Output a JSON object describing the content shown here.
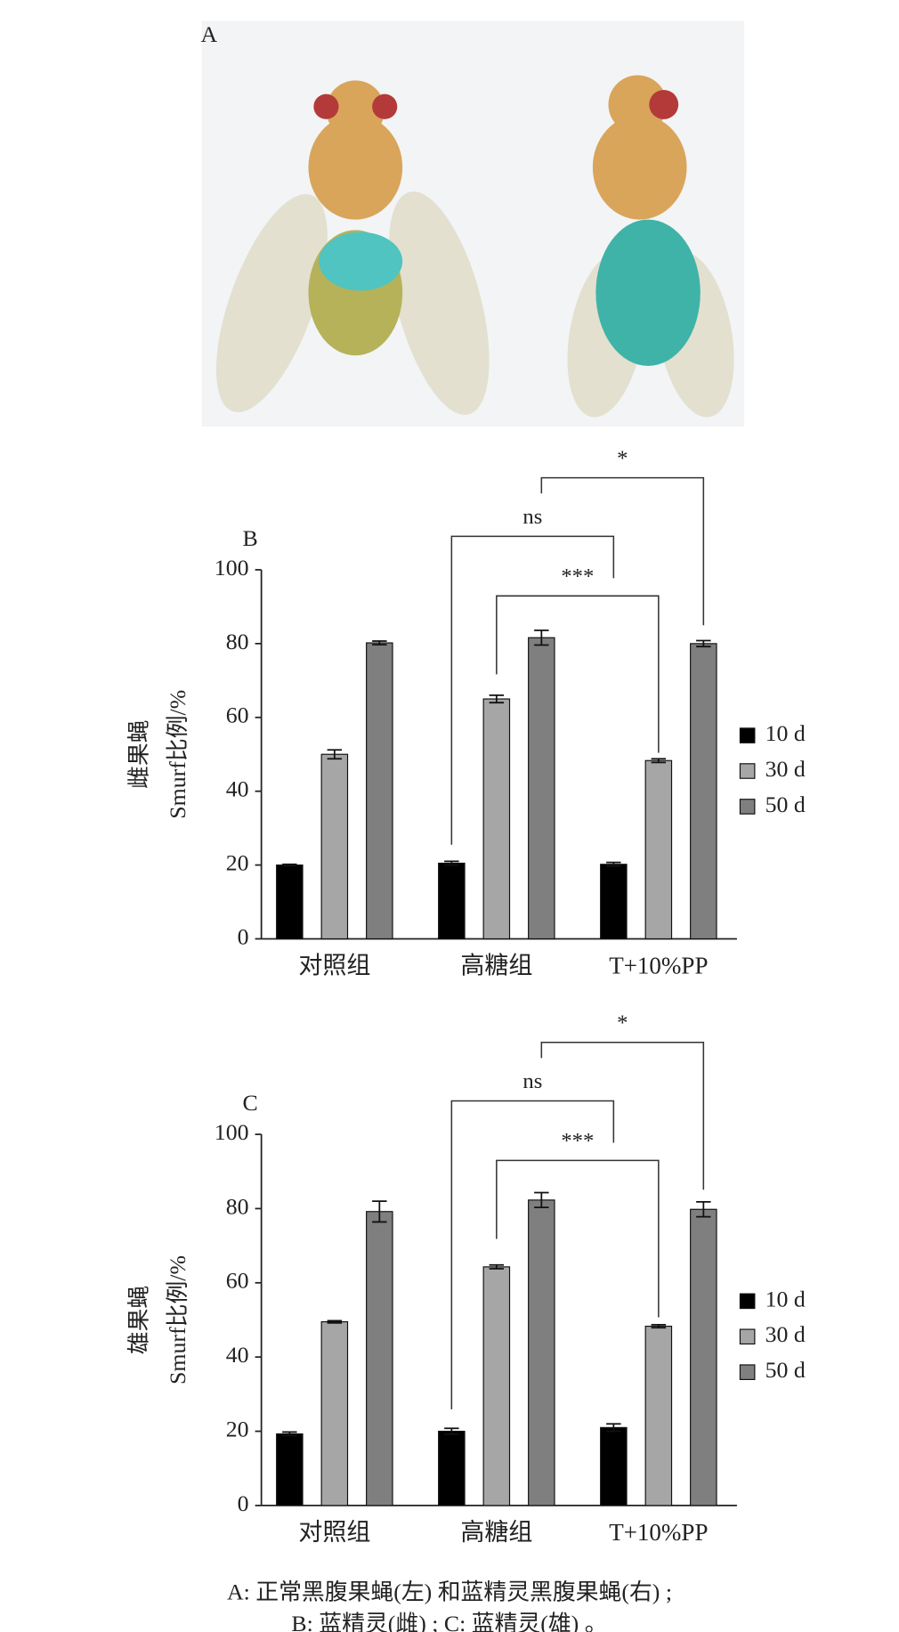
{
  "panel_a": {
    "label": "A"
  },
  "chart_data": [
    {
      "type": "bar",
      "label": "B",
      "ylabel": [
        "雌果蝇",
        "Smurf比例/%"
      ],
      "categories": [
        "对照组",
        "高糖组",
        "T+10%PP"
      ],
      "series": [
        {
          "name": "10 d",
          "color": "#000000",
          "values": [
            20,
            20.5,
            20.2
          ],
          "errors": [
            0.2,
            0.5,
            0.5
          ]
        },
        {
          "name": "30 d",
          "color": "#a6a6a6",
          "values": [
            50,
            65,
            48.3
          ],
          "errors": [
            1.2,
            1,
            0.5
          ]
        },
        {
          "name": "50 d",
          "color": "#7f7f7f",
          "values": [
            80.2,
            81.6,
            80
          ],
          "errors": [
            0.5,
            2,
            0.8
          ]
        }
      ],
      "ylim": [
        0,
        100
      ],
      "yticks": [
        0,
        20,
        40,
        60,
        80,
        100
      ],
      "legend": "right",
      "significance": [
        {
          "label": "ns"
        },
        {
          "label": "***"
        },
        {
          "label": "*"
        }
      ]
    },
    {
      "type": "bar",
      "label": "C",
      "ylabel": [
        "雄果蝇",
        "Smurf比例/%"
      ],
      "categories": [
        "对照组",
        "高糖组",
        "T+10%PP"
      ],
      "series": [
        {
          "name": "10 d",
          "color": "#000000",
          "values": [
            19.3,
            20,
            21
          ],
          "errors": [
            0.5,
            0.8,
            1
          ]
        },
        {
          "name": "30 d",
          "color": "#a6a6a6",
          "values": [
            49.5,
            64.3,
            48.3
          ],
          "errors": [
            0.3,
            0.5,
            0.4
          ]
        },
        {
          "name": "50 d",
          "color": "#7f7f7f",
          "values": [
            79.2,
            82.3,
            79.8
          ],
          "errors": [
            2.8,
            2,
            2
          ]
        }
      ],
      "ylim": [
        0,
        100
      ],
      "yticks": [
        0,
        20,
        40,
        60,
        80,
        100
      ],
      "legend": "right",
      "significance": [
        {
          "label": "ns"
        },
        {
          "label": "***"
        },
        {
          "label": "*"
        }
      ]
    }
  ],
  "caption": [
    "A: 正常黑腹果蝇(左) 和蓝精灵黑腹果蝇(右) ;",
    "B: 蓝精灵(雌) ; C: 蓝精灵(雄) 。"
  ]
}
